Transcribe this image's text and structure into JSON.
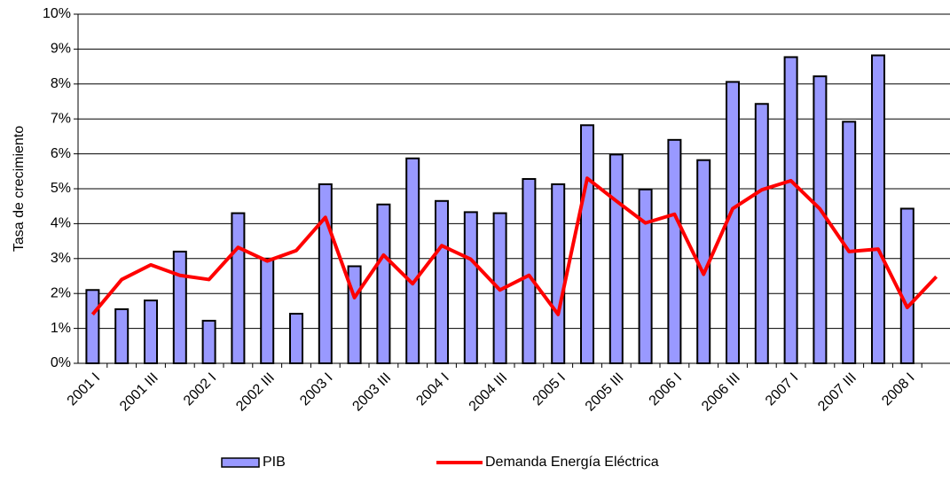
{
  "chart_data": {
    "type": "bar-line",
    "y_label": "Tasa de crecimiento",
    "categories": [
      "2001 I",
      null,
      "2001 III",
      null,
      "2002 I",
      null,
      "2002 III",
      null,
      "2003 I",
      null,
      "2003 III",
      null,
      "2004 I",
      null,
      "2004 III",
      null,
      "2005 I",
      null,
      "2005 III",
      null,
      "2006 I",
      null,
      "2006 III",
      null,
      "2007 I",
      null,
      "2007 III",
      null,
      "2008 I",
      null
    ],
    "series": [
      {
        "name": "PIB",
        "type": "bar",
        "color": "#9999ff",
        "values": [
          2.1,
          1.55,
          1.8,
          3.2,
          1.22,
          4.3,
          3.0,
          1.42,
          5.13,
          2.78,
          4.55,
          5.87,
          4.65,
          4.33,
          4.3,
          5.28,
          5.13,
          6.82,
          5.98,
          4.98,
          6.4,
          5.82,
          8.06,
          7.43,
          8.77,
          8.22,
          6.92,
          8.82,
          4.43,
          null
        ]
      },
      {
        "name": "Demanda Energía Eléctrica",
        "type": "line",
        "color": "#ff0000",
        "values": [
          1.4,
          2.4,
          2.82,
          2.52,
          2.4,
          3.32,
          2.93,
          3.23,
          4.18,
          1.88,
          3.1,
          2.28,
          3.37,
          2.98,
          2.1,
          2.52,
          1.4,
          5.3,
          4.65,
          4.02,
          4.27,
          2.55,
          4.43,
          4.97,
          5.23,
          4.42,
          3.2,
          3.27,
          1.6,
          2.48
        ]
      }
    ],
    "ylim": [
      0,
      10
    ],
    "yticks": [
      {
        "value": 0,
        "label": "0%"
      },
      {
        "value": 1,
        "label": "1%"
      },
      {
        "value": 2,
        "label": "2%"
      },
      {
        "value": 3,
        "label": "3%"
      },
      {
        "value": 4,
        "label": "4%"
      },
      {
        "value": 5,
        "label": "5%"
      },
      {
        "value": 6,
        "label": "6%"
      },
      {
        "value": 7,
        "label": "7%"
      },
      {
        "value": 8,
        "label": "8%"
      },
      {
        "value": 9,
        "label": "9%"
      },
      {
        "value": 10,
        "label": "10%"
      }
    ],
    "grid": true,
    "legend": "bottom"
  }
}
